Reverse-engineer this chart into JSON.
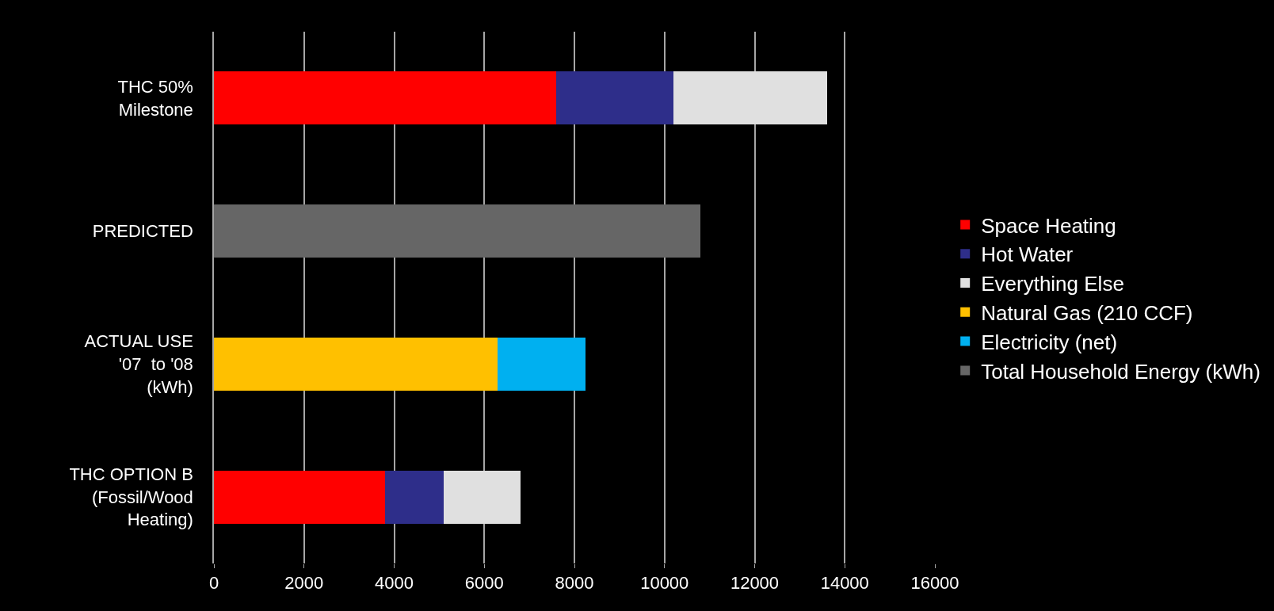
{
  "chart_data": {
    "type": "bar",
    "orientation": "horizontal",
    "stacked": true,
    "categories": [
      "THC 50%\nMilestone",
      "PREDICTED",
      "ACTUAL USE\n'07  to '08\n(kWh)",
      "THC OPTION B\n(Fossil/Wood\nHeating)"
    ],
    "series": [
      {
        "name": "Space Heating",
        "color": "#ff0000",
        "values": [
          7600,
          null,
          null,
          3800
        ]
      },
      {
        "name": "Hot Water",
        "color": "#2e2e8a",
        "values": [
          2600,
          null,
          null,
          1300
        ]
      },
      {
        "name": "Everything Else",
        "color": "#e0e0e0",
        "values": [
          3400,
          null,
          null,
          1700
        ]
      },
      {
        "name": "Natural Gas (210 CCF)",
        "color": "#ffc000",
        "values": [
          null,
          null,
          6300,
          null
        ]
      },
      {
        "name": "Electricity (net)",
        "color": "#00b0f0",
        "values": [
          null,
          null,
          1950,
          null
        ]
      },
      {
        "name": "Total Household Energy (kWh)",
        "color": "#666666",
        "values": [
          null,
          10800,
          null,
          null
        ]
      }
    ],
    "xlim": [
      0,
      16000
    ],
    "xticks": [
      0,
      2000,
      4000,
      6000,
      8000,
      10000,
      12000,
      14000,
      16000
    ],
    "grid": "x",
    "legend": "right"
  }
}
